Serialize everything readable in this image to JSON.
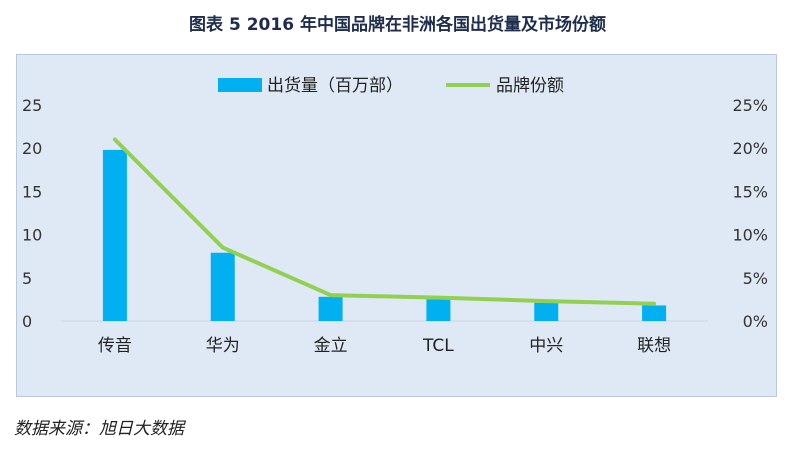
{
  "title": "图表 5    2016 年中国品牌在非洲各国出货量及市场份额",
  "source": "数据来源：旭日大数据",
  "colors": {
    "bar": "#00b0f0",
    "line": "#92d050",
    "background": "#dfe9f5"
  },
  "chart_data": {
    "type": "bar",
    "categories": [
      "传音",
      "华为",
      "金立",
      "TCL",
      "中兴",
      "联想"
    ],
    "series": [
      {
        "name": "出货量（百万部）",
        "type": "bar",
        "axis": "left",
        "values": [
          19.8,
          7.9,
          2.8,
          2.5,
          2.1,
          1.8
        ]
      },
      {
        "name": "品牌份额",
        "type": "line",
        "axis": "right",
        "values": [
          0.21,
          0.085,
          0.03,
          0.027,
          0.023,
          0.02
        ]
      }
    ],
    "ylim_left": [
      0,
      25
    ],
    "ylim_right": [
      0,
      0.25
    ],
    "yticks_left": [
      "0",
      "5",
      "10",
      "15",
      "20",
      "25"
    ],
    "yticks_right": [
      "0%",
      "5%",
      "10%",
      "15%",
      "20%",
      "25%"
    ],
    "legend_position": "top",
    "grid": false
  }
}
